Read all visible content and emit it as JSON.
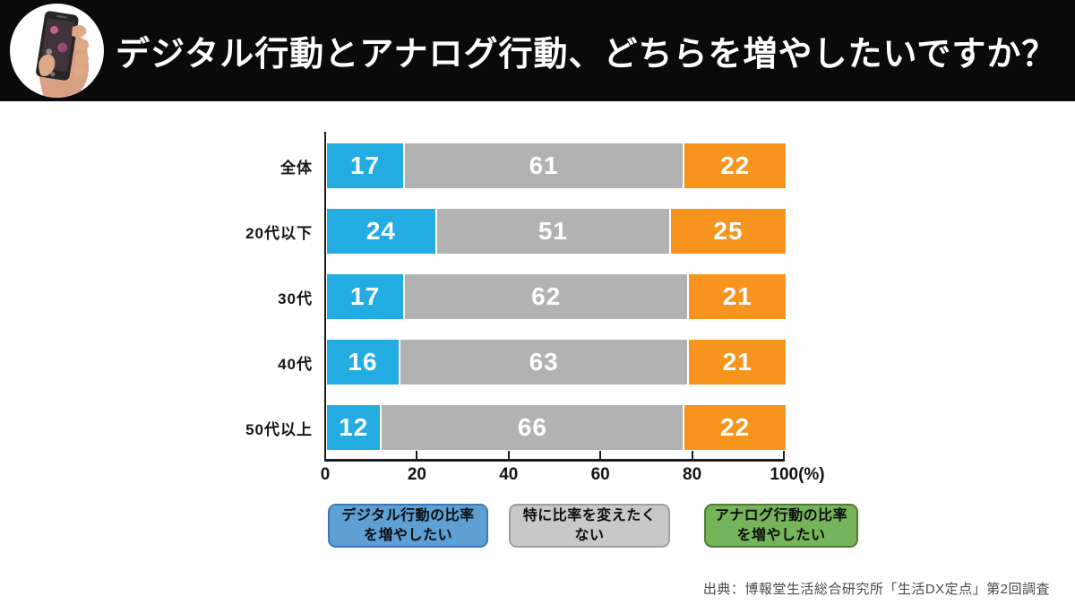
{
  "header": {
    "title": "デジタル行動とアナログ行動、どちらを増やしたいですか？"
  },
  "chart_data": {
    "type": "bar",
    "orientation": "horizontal",
    "stacked": true,
    "title": "デジタル行動とアナログ行動、どちらを増やしたいですか？",
    "xlabel": "",
    "ylabel": "",
    "grid": false,
    "legend_position": "bottom",
    "categories": [
      "全体",
      "20代以下",
      "30代",
      "40代",
      "50代以上"
    ],
    "series": [
      {
        "name": "デジタル行動の比率を増やしたい",
        "color": "#22ACE2",
        "values": [
          17,
          24,
          17,
          16,
          12
        ]
      },
      {
        "name": "特に比率を変えたくない",
        "color": "#B2B2B2",
        "values": [
          61,
          51,
          62,
          63,
          66
        ]
      },
      {
        "name": "アナログ行動の比率を増やしたい",
        "color": "#F7941E",
        "values": [
          22,
          25,
          21,
          21,
          22
        ]
      }
    ],
    "x_axis": {
      "range": [
        0,
        100
      ],
      "ticks": [
        "0",
        "20",
        "40",
        "60",
        "80",
        "100(%)"
      ]
    },
    "legend": [
      {
        "lines": [
          "デジタル行動の比率",
          "を増やしたい"
        ],
        "fill": "#5E9FD4",
        "border": "#3C78B4"
      },
      {
        "lines": [
          "特に比率を変えたく",
          "ない"
        ],
        "fill": "#C8C8C8",
        "border": "#9E9E9E"
      },
      {
        "lines": [
          "アナログ行動の比率",
          "を増やしたい"
        ],
        "fill": "#76B45B",
        "border": "#4F7D36"
      }
    ]
  },
  "source": "出典：博報堂生活総合研究所「生活DX定点」第2回調査"
}
